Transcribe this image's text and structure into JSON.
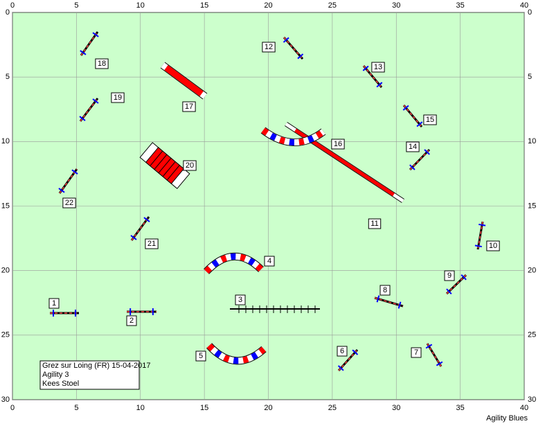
{
  "course": {
    "xticks": [
      0,
      5,
      10,
      15,
      20,
      25,
      30,
      35,
      40
    ],
    "yticks": [
      0,
      5,
      10,
      15,
      20,
      25,
      30
    ],
    "obstacles": [
      "1",
      "2",
      "3",
      "4",
      "5",
      "6",
      "7",
      "8",
      "9",
      "10",
      "11",
      "12",
      "13",
      "14",
      "15",
      "16",
      "17",
      "18",
      "19",
      "20",
      "21",
      "22"
    ],
    "info": [
      "Grez sur Loing (FR) 15-04-2017",
      "Agility 3",
      "Kees Stoel"
    ],
    "footer": "Agility Blues"
  }
}
